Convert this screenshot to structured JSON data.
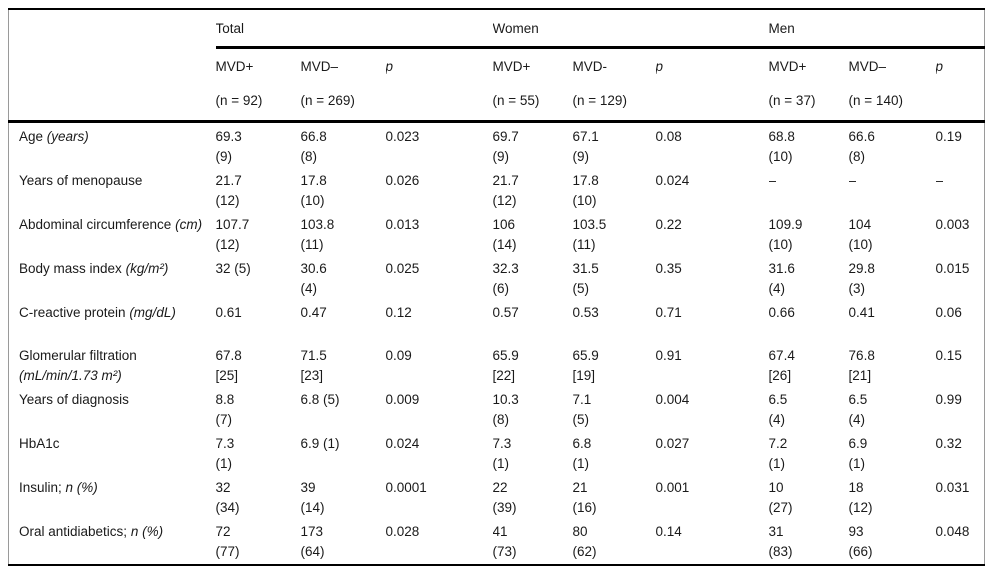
{
  "table": {
    "groups": [
      {
        "label": "Total",
        "sub": [
          "MVD+",
          "MVD–",
          "p"
        ],
        "n": [
          "(n = 92)",
          "(n = 269)",
          ""
        ]
      },
      {
        "label": "Women",
        "sub": [
          "MVD+",
          "MVD-",
          "p"
        ],
        "n": [
          "(n = 55)",
          "(n = 129)",
          ""
        ]
      },
      {
        "label": "Men",
        "sub": [
          "MVD+",
          "MVD–",
          "p"
        ],
        "n": [
          "(n = 37)",
          "(n = 140)",
          ""
        ]
      }
    ],
    "rows": [
      {
        "label": "Age",
        "unit": "(years)",
        "cells": [
          "69.3\n(9)",
          "66.8\n(8)",
          "0.023",
          "69.7\n(9)",
          "67.1\n(9)",
          "0.08",
          "68.8\n(10)",
          "66.6\n(8)",
          "0.19"
        ]
      },
      {
        "label": "Years of menopause",
        "unit": "",
        "cells": [
          "21.7\n(12)",
          "17.8\n(10)",
          "0.026",
          "21.7\n(12)",
          "17.8\n(10)",
          "0.024",
          "–",
          "–",
          "–"
        ]
      },
      {
        "label": "Abdominal circumference",
        "unit": "(cm)",
        "cells": [
          "107.7\n(12)",
          "103.8\n(11)",
          "0.013",
          "106\n(14)",
          "103.5\n(11)",
          "0.22",
          "109.9\n(10)",
          "104\n(10)",
          "0.003"
        ]
      },
      {
        "label": "Body mass index",
        "unit": "(kg/m²)",
        "cells": [
          "32 (5)",
          "30.6\n(4)",
          "0.025",
          "32.3\n(6)",
          "31.5\n(5)",
          "0.35",
          "31.6\n(4)",
          "29.8\n(3)",
          "0.015"
        ]
      },
      {
        "label": "C-reactive protein",
        "unit": "(mg/dL)",
        "cells": [
          "0.61",
          "0.47",
          "0.12",
          "0.57",
          "0.53",
          "0.71",
          "0.66",
          "0.41",
          "0.06"
        ]
      },
      {
        "label": "Glomerular filtration",
        "unit": "(mL/min/1.73 m²)",
        "cells": [
          "67.8\n[25]",
          "71.5\n[23]",
          "0.09",
          "65.9\n[22]",
          "65.9\n[19]",
          "0.91",
          "67.4\n[26]",
          "76.8\n[21]",
          "0.15"
        ]
      },
      {
        "label": "Years of diagnosis",
        "unit": "",
        "cells": [
          "8.8\n(7)",
          "6.8 (5)",
          "0.009",
          "10.3\n(8)",
          "7.1\n(5)",
          "0.004",
          "6.5\n(4)",
          "6.5\n(4)",
          "0.99"
        ]
      },
      {
        "label": "HbA1c",
        "unit": "",
        "cells": [
          "7.3\n(1)",
          "6.9 (1)",
          "0.024",
          "7.3\n(1)",
          "6.8\n(1)",
          "0.027",
          "7.2\n(1)",
          "6.9\n(1)",
          "0.32"
        ]
      },
      {
        "label": "Insulin;",
        "unit": "n (%)",
        "cells": [
          "32\n(34)",
          "39\n(14)",
          "0.0001",
          "22\n(39)",
          "21\n(16)",
          "0.001",
          "10\n(27)",
          "18\n(12)",
          "0.031"
        ]
      },
      {
        "label": "Oral antidiabetics;",
        "unit": "n (%)",
        "cells": [
          "72\n(77)",
          "173\n(64)",
          "0.028",
          "41\n(73)",
          "80\n(62)",
          "0.14",
          "31\n(83)",
          "93\n(66)",
          "0.048"
        ]
      }
    ]
  }
}
